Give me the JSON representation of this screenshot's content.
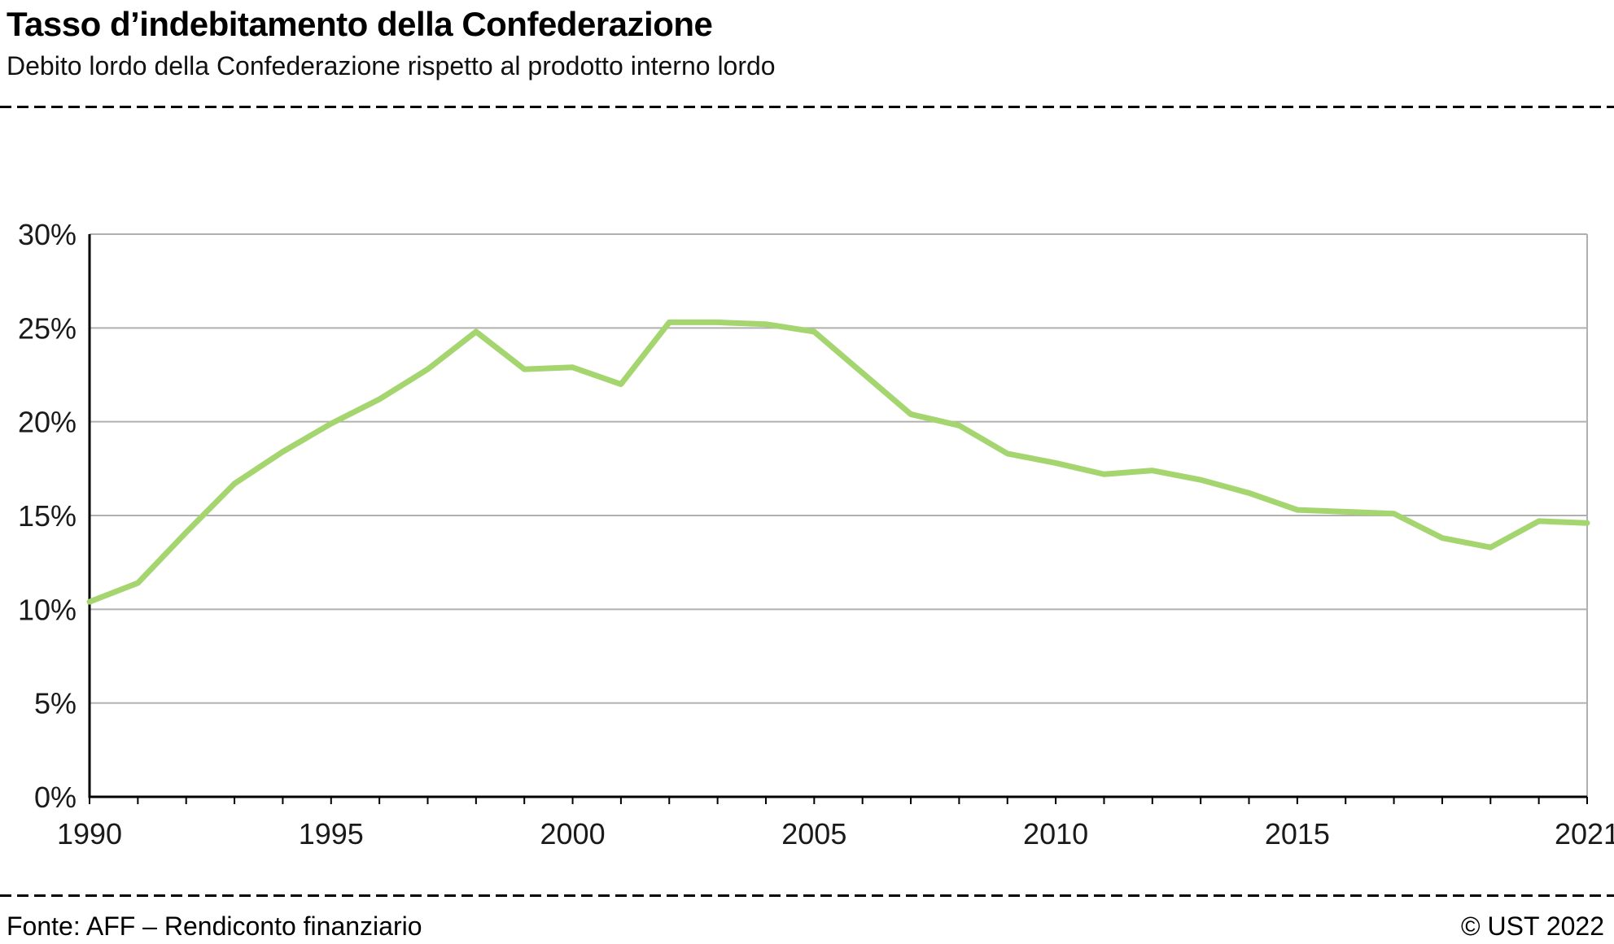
{
  "header": {
    "title": "Tasso d’indebitamento della Confederazione",
    "subtitle": "Debito lordo della Confederazione rispetto al prodotto interno lordo"
  },
  "footer": {
    "source": "Fonte: AFF – Rendiconto finanziario",
    "copyright": "© UST 2022"
  },
  "chart_data": {
    "type": "line",
    "title": "Tasso d’indebitamento della Confederazione",
    "subtitle": "Debito lordo della Confederazione rispetto al prodotto interno lordo",
    "x": [
      1990,
      1991,
      1992,
      1993,
      1994,
      1995,
      1996,
      1997,
      1998,
      1999,
      2000,
      2001,
      2002,
      2003,
      2004,
      2005,
      2006,
      2007,
      2008,
      2009,
      2010,
      2011,
      2012,
      2013,
      2014,
      2015,
      2016,
      2017,
      2018,
      2019,
      2020,
      2021
    ],
    "values": [
      10.4,
      11.4,
      14.1,
      16.7,
      18.4,
      19.9,
      21.2,
      22.8,
      24.8,
      22.8,
      22.9,
      22.0,
      25.3,
      25.3,
      25.2,
      24.8,
      22.6,
      20.4,
      19.8,
      18.3,
      17.8,
      17.2,
      17.4,
      16.9,
      16.2,
      15.3,
      15.2,
      15.1,
      13.8,
      13.3,
      14.7,
      14.6
    ],
    "ylim": [
      0,
      30
    ],
    "yticks": [
      0,
      5,
      10,
      15,
      20,
      25,
      30
    ],
    "ytick_suffix": "%",
    "xticks": [
      1990,
      1995,
      2000,
      2005,
      2010,
      2015,
      2021
    ],
    "grid": true,
    "legend": "none",
    "colors": {
      "line": "#a5d56e",
      "grid": "#b0b0b0",
      "axis": "#000000",
      "text": "#1a1a1a"
    }
  }
}
